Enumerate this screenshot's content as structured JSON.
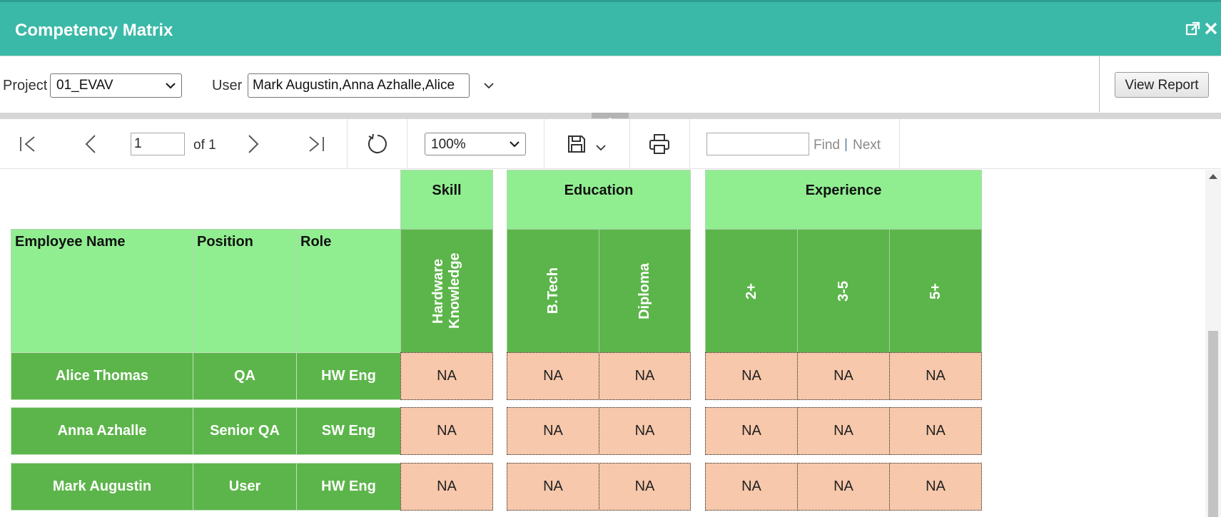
{
  "window": {
    "title": "Competency Matrix",
    "icons": [
      "popout-icon",
      "close-icon"
    ]
  },
  "params": {
    "project_label": "Project",
    "project_value": "01_EVAV",
    "user_label": "User",
    "user_value": "Mark Augustin,Anna Azhalle,Alice",
    "view_report_label": "View Report"
  },
  "toolbar": {
    "page_value": "1",
    "of_label": "of 1",
    "zoom_value": "100%",
    "find_label": "Find",
    "separator": "|",
    "next_label": "Next",
    "icons": [
      "first-page-icon",
      "previous-page-icon",
      "next-page-icon",
      "last-page-icon",
      "refresh-icon",
      "save-icon",
      "print-icon"
    ]
  },
  "matrix": {
    "groups": {
      "skill": "Skill",
      "education": "Education",
      "experience": "Experience"
    },
    "columns": {
      "employee_name": "Employee Name",
      "position": "Position",
      "role": "Role",
      "hardware_knowledge": "Hardware Knowledge",
      "btech": "B.Tech",
      "diploma": "Diploma",
      "exp_2": "2+",
      "exp_3_5": "3-5",
      "exp_5": "5+"
    },
    "rows": [
      {
        "name": "Alice Thomas",
        "position": "QA",
        "role": "HW Eng",
        "values": [
          "NA",
          "NA",
          "NA",
          "NA",
          "NA",
          "NA"
        ]
      },
      {
        "name": "Anna Azhalle",
        "position": "Senior QA",
        "role": "SW Eng",
        "values": [
          "NA",
          "NA",
          "NA",
          "NA",
          "NA",
          "NA"
        ]
      },
      {
        "name": "Mark Augustin",
        "position": "User",
        "role": "HW Eng",
        "values": [
          "NA",
          "NA",
          "NA",
          "NA",
          "NA",
          "NA"
        ]
      }
    ]
  }
}
